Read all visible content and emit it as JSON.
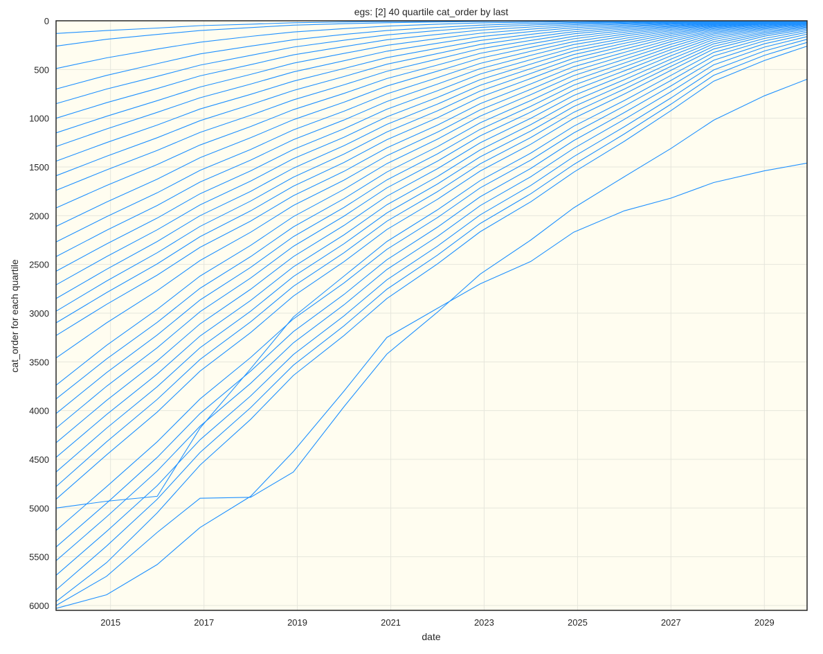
{
  "chart_data": {
    "type": "line",
    "title": "egs: [2]    40 quartile cat_order by last",
    "xlabel": "date",
    "ylabel": "cat_order for each quartile",
    "x_range": [
      "2013-11-01",
      "2029-12-01"
    ],
    "y_range": [
      6050,
      0
    ],
    "y_inverted": true,
    "grid": true,
    "legend": "none",
    "plot_background": "#fffdf0",
    "line_color": "#1e90ff",
    "x_ticks": [
      {
        "date": "2015-01-01",
        "label": "2015"
      },
      {
        "date": "2017-01-01",
        "label": "2017"
      },
      {
        "date": "2019-01-01",
        "label": "2019"
      },
      {
        "date": "2021-01-01",
        "label": "2021"
      },
      {
        "date": "2023-01-01",
        "label": "2023"
      },
      {
        "date": "2025-01-01",
        "label": "2025"
      },
      {
        "date": "2027-01-01",
        "label": "2027"
      },
      {
        "date": "2029-01-01",
        "label": "2029"
      }
    ],
    "y_ticks": [
      0,
      500,
      1000,
      1500,
      2000,
      2500,
      3000,
      3500,
      4000,
      4500,
      5000,
      5500,
      6000
    ],
    "x_dates": [
      "2013-11-01",
      "2014-12-01",
      "2016-01-01",
      "2016-12-01",
      "2018-01-01",
      "2018-12-01",
      "2020-01-01",
      "2020-12-01",
      "2022-01-01",
      "2022-12-01",
      "2024-01-01",
      "2024-12-01",
      "2026-01-01",
      "2027-01-01",
      "2027-12-01",
      "2029-01-01",
      "2029-12-01"
    ],
    "series": [
      {
        "values": [
          130,
          100,
          75,
          50,
          35,
          20,
          12,
          8,
          5,
          3,
          2,
          1,
          1,
          0,
          0,
          0,
          0
        ]
      },
      {
        "values": [
          260,
          190,
          140,
          100,
          70,
          45,
          30,
          20,
          12,
          8,
          5,
          3,
          2,
          1,
          0,
          0,
          0
        ]
      },
      {
        "values": [
          490,
          380,
          290,
          220,
          160,
          115,
          80,
          55,
          35,
          22,
          14,
          8,
          5,
          3,
          1,
          0,
          0
        ]
      },
      {
        "values": [
          700,
          560,
          440,
          340,
          260,
          195,
          140,
          100,
          68,
          45,
          28,
          17,
          10,
          5,
          2,
          1,
          0
        ]
      },
      {
        "values": [
          850,
          700,
          570,
          455,
          355,
          270,
          200,
          145,
          100,
          68,
          44,
          27,
          16,
          8,
          3,
          1,
          0
        ]
      },
      {
        "values": [
          1000,
          840,
          695,
          565,
          450,
          350,
          265,
          195,
          140,
          96,
          64,
          40,
          24,
          12,
          5,
          2,
          0
        ]
      },
      {
        "values": [
          1150,
          980,
          820,
          680,
          550,
          435,
          335,
          252,
          183,
          128,
          86,
          55,
          33,
          17,
          7,
          2,
          1
        ]
      },
      {
        "values": [
          1290,
          1110,
          940,
          790,
          650,
          525,
          410,
          312,
          230,
          163,
          111,
          72,
          44,
          23,
          10,
          3,
          1
        ]
      },
      {
        "values": [
          1440,
          1250,
          1070,
          905,
          755,
          620,
          490,
          378,
          282,
          202,
          139,
          91,
          56,
          30,
          13,
          4,
          1
        ]
      },
      {
        "values": [
          1590,
          1390,
          1200,
          1025,
          860,
          715,
          572,
          446,
          336,
          243,
          169,
          112,
          69,
          37,
          16,
          5,
          2
        ]
      },
      {
        "values": [
          1740,
          1530,
          1330,
          1145,
          970,
          812,
          657,
          518,
          393,
          287,
          201,
          134,
          84,
          46,
          20,
          7,
          2
        ]
      },
      {
        "values": [
          1920,
          1690,
          1475,
          1275,
          1085,
          912,
          745,
          593,
          454,
          334,
          236,
          159,
          100,
          55,
          24,
          8,
          3
        ]
      },
      {
        "values": [
          2110,
          1860,
          1625,
          1405,
          1200,
          1015,
          835,
          670,
          517,
          384,
          273,
          185,
          118,
          65,
          29,
          10,
          3
        ]
      },
      {
        "values": [
          2270,
          2010,
          1765,
          1535,
          1320,
          1120,
          928,
          750,
          584,
          437,
          313,
          214,
          137,
          76,
          34,
          12,
          4
        ]
      },
      {
        "values": [
          2420,
          2150,
          1895,
          1655,
          1430,
          1220,
          1018,
          828,
          650,
          491,
          355,
          244,
          158,
          89,
          40,
          14,
          5
        ]
      },
      {
        "values": [
          2570,
          2290,
          2025,
          1775,
          1540,
          1320,
          1108,
          907,
          718,
          547,
          399,
          277,
          181,
          102,
          47,
          17,
          6
        ]
      },
      {
        "values": [
          2710,
          2420,
          2145,
          1890,
          1645,
          1415,
          1195,
          985,
          786,
          604,
          444,
          311,
          205,
          117,
          54,
          20,
          7
        ]
      },
      {
        "values": [
          2850,
          2550,
          2265,
          2000,
          1750,
          1512,
          1282,
          1063,
          855,
          662,
          491,
          347,
          231,
          133,
          62,
          24,
          9
        ]
      },
      {
        "values": [
          2980,
          2670,
          2380,
          2110,
          1850,
          1605,
          1368,
          1141,
          924,
          721,
          540,
          385,
          259,
          151,
          71,
          28,
          11
        ]
      },
      {
        "values": [
          3100,
          2790,
          2495,
          2215,
          1950,
          1698,
          1454,
          1220,
          995,
          783,
          592,
          426,
          290,
          170,
          81,
          33,
          13
        ]
      },
      {
        "values": [
          3230,
          2910,
          2610,
          2325,
          2055,
          1795,
          1545,
          1304,
          1071,
          850,
          648,
          471,
          324,
          192,
          93,
          39,
          16
        ]
      },
      {
        "values": [
          3460,
          3100,
          2770,
          2460,
          2170,
          1895,
          1635,
          1384,
          1143,
          914,
          703,
          516,
          359,
          215,
          106,
          46,
          19
        ]
      },
      {
        "values": [
          3740,
          3330,
          2960,
          2620,
          2305,
          2010,
          1730,
          1466,
          1215,
          978,
          758,
          562,
          395,
          240,
          120,
          54,
          23
        ]
      },
      {
        "values": [
          3880,
          3470,
          3095,
          2745,
          2420,
          2115,
          1825,
          1552,
          1292,
          1047,
          818,
          612,
          434,
          268,
          136,
          63,
          28
        ]
      },
      {
        "values": [
          4030,
          3610,
          3225,
          2865,
          2530,
          2215,
          1915,
          1633,
          1366,
          1114,
          877,
          661,
          473,
          296,
          153,
          73,
          33
        ]
      },
      {
        "values": [
          4180,
          3750,
          3355,
          2985,
          2640,
          2315,
          2005,
          1715,
          1440,
          1181,
          937,
          712,
          514,
          326,
          172,
          84,
          39
        ]
      },
      {
        "values": [
          4330,
          3895,
          3490,
          3110,
          2755,
          2420,
          2100,
          1800,
          1518,
          1252,
          1000,
          767,
          558,
          359,
          192,
          96,
          46
        ]
      },
      {
        "values": [
          4480,
          4040,
          3625,
          3235,
          2870,
          2525,
          2197,
          1888,
          1598,
          1325,
          1066,
          824,
          605,
          394,
          214,
          110,
          54
        ]
      },
      {
        "values": [
          4630,
          4180,
          3755,
          3355,
          2980,
          2625,
          2288,
          1972,
          1675,
          1396,
          1131,
          881,
          652,
          430,
          237,
          124,
          63
        ]
      },
      {
        "values": [
          4780,
          4320,
          3885,
          3475,
          3090,
          2725,
          2380,
          2057,
          1753,
          1468,
          1198,
          940,
          701,
          468,
          262,
          140,
          73
        ]
      },
      {
        "values": [
          4910,
          4455,
          4015,
          3595,
          3200,
          2825,
          2472,
          2142,
          1832,
          1542,
          1267,
          1002,
          752,
          508,
          290,
          158,
          85
        ]
      },
      {
        "values": [
          5000,
          4930,
          4880,
          4180,
          3570,
          3040,
          2620,
          2265,
          1940,
          1640,
          1358,
          1083,
          818,
          560,
          325,
          181,
          100
        ]
      },
      {
        "values": [
          5230,
          4780,
          4320,
          3880,
          3455,
          3060,
          2690,
          2345,
          2020,
          1715,
          1430,
          1152,
          876,
          612,
          362,
          206,
          118
        ]
      },
      {
        "values": [
          5400,
          4950,
          4480,
          4030,
          3595,
          3190,
          2808,
          2452,
          2118,
          1806,
          1515,
          1230,
          942,
          668,
          405,
          236,
          138
        ]
      },
      {
        "values": [
          5540,
          5090,
          4620,
          4160,
          3720,
          3305,
          2915,
          2552,
          2213,
          1897,
          1600,
          1310,
          1012,
          728,
          452,
          270,
          162
        ]
      },
      {
        "values": [
          5690,
          5240,
          4770,
          4300,
          3850,
          3425,
          3028,
          2658,
          2313,
          1992,
          1690,
          1395,
          1088,
          792,
          505,
          310,
          190
        ]
      },
      {
        "values": [
          5840,
          5390,
          4910,
          4430,
          3970,
          3535,
          3130,
          2755,
          2405,
          2080,
          1775,
          1476,
          1162,
          856,
          560,
          355,
          222
        ]
      },
      {
        "values": [
          5960,
          5560,
          5050,
          4560,
          4090,
          3640,
          3230,
          2850,
          2495,
          2165,
          1858,
          1555,
          1237,
          922,
          620,
          408,
          260
        ]
      },
      {
        "values": [
          6000,
          5700,
          5250,
          4900,
          4890,
          4630,
          3960,
          3420,
          2990,
          2600,
          2250,
          1920,
          1600,
          1310,
          1020,
          770,
          600
        ]
      },
      {
        "values": [
          6030,
          5890,
          5580,
          5200,
          4880,
          4420,
          3800,
          3250,
          2950,
          2700,
          2470,
          2170,
          1950,
          1820,
          1660,
          1540,
          1460
        ]
      }
    ]
  }
}
